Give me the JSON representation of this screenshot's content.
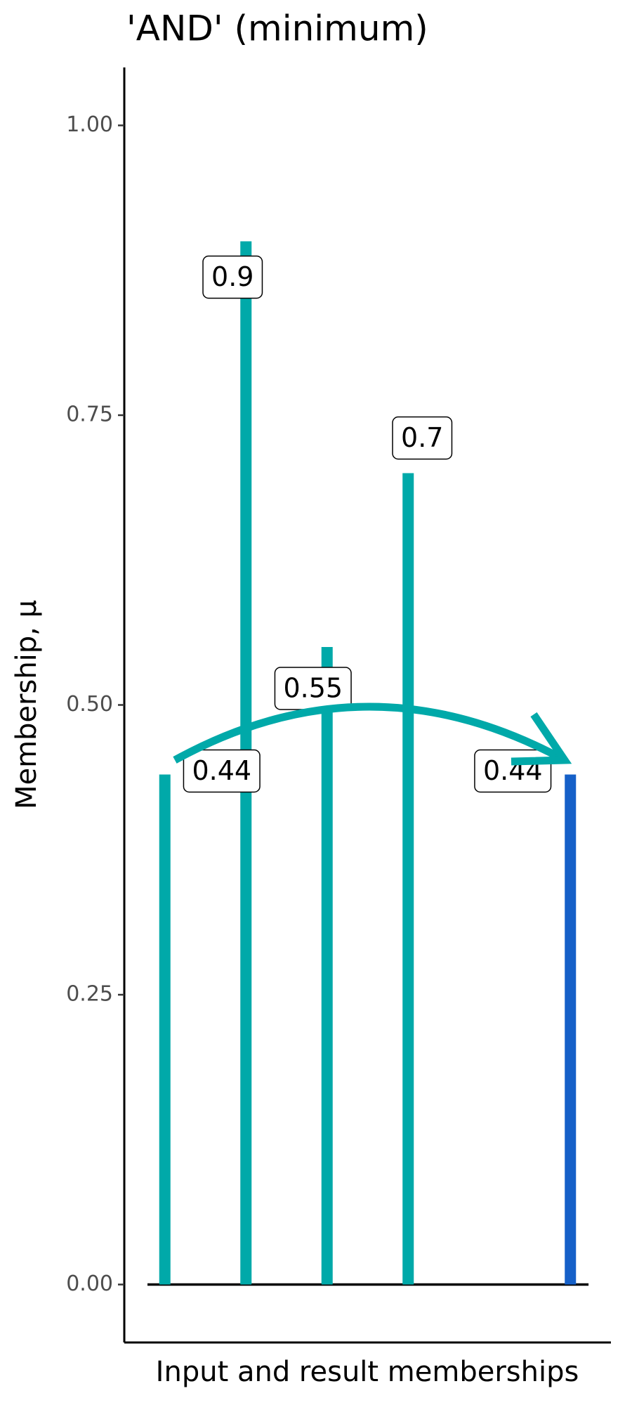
{
  "chart_data": {
    "type": "bar",
    "title": "'AND' (minimum)",
    "x_label": "Input and result memberships",
    "y_label": "Membership, μ",
    "categories": [
      null,
      null,
      null,
      null,
      null,
      null
    ],
    "values": [
      0.44,
      0.9,
      0.55,
      0.7,
      null,
      0.44
    ],
    "value_labels": [
      "0.44",
      "0.9",
      "0.55",
      "0.7",
      null,
      "0.44"
    ],
    "colors": [
      "#00a9a9",
      "#00a9a9",
      "#00a9a9",
      "#00a9a9",
      null,
      "#1560c8"
    ],
    "ylim": [
      -0.05,
      1.05
    ],
    "yticks": [
      {
        "value": 0,
        "label": "0.00"
      },
      {
        "value": 0.25,
        "label": "0.25"
      },
      {
        "value": 0.5,
        "label": "0.50"
      },
      {
        "value": 0.75,
        "label": "0.75"
      },
      {
        "value": 1,
        "label": "1.00"
      }
    ]
  }
}
